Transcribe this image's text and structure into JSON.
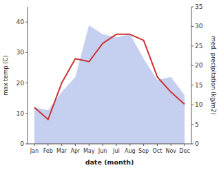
{
  "chart_data": {
    "type": "line",
    "xlabel": "date (month)",
    "ylabel": "max temp (C)",
    "y2label": "med. precipitation (kg/m2)",
    "categories": [
      "Jan",
      "Feb",
      "Mar",
      "Apr",
      "May",
      "Jun",
      "Jul",
      "Aug",
      "Sep",
      "Oct",
      "Nov",
      "Dec"
    ],
    "series": [
      {
        "type": "area",
        "color": "#c5d0f0",
        "values": [
          12,
          11,
          17,
          22,
          39,
          36,
          35,
          36,
          28,
          21,
          22,
          16
        ]
      },
      {
        "type": "line",
        "color": "#cc3333",
        "values": [
          12,
          8,
          20,
          28,
          27,
          33,
          36,
          36,
          34,
          22,
          17,
          13
        ]
      }
    ],
    "ylim": [
      0,
      45
    ],
    "yticks": [
      0,
      10,
      20,
      30,
      40
    ],
    "y2lim": [
      0,
      35
    ],
    "y2ticks": [
      0,
      5,
      10,
      15,
      20,
      25,
      30,
      35
    ],
    "grid": false
  }
}
